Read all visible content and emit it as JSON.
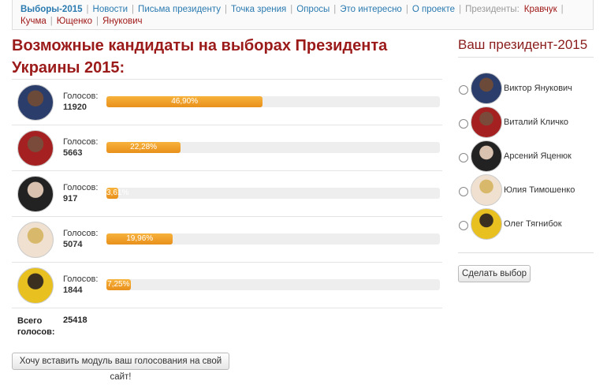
{
  "nav": {
    "items": [
      "Выборы-2015",
      "Новости",
      "Письма президенту",
      "Точка зрения",
      "Опросы",
      "Это интересно",
      "О проекте"
    ],
    "presidents_label": "Президенты:",
    "presidents": [
      "Кравчук",
      "Кучма",
      "Ющенко",
      "Янукович"
    ]
  },
  "results": {
    "title": "Возможные кандидаты на выборах Президента Украины 2015:",
    "votes_label": "Голосов:",
    "candidates": [
      {
        "votes": 11920,
        "percent": 46.9,
        "percent_label": "46,90%"
      },
      {
        "votes": 5663,
        "percent": 22.28,
        "percent_label": "22,28%"
      },
      {
        "votes": 917,
        "percent": 3.61,
        "percent_label": "3,61%"
      },
      {
        "votes": 5074,
        "percent": 19.96,
        "percent_label": "19,96%"
      },
      {
        "votes": 1844,
        "percent": 7.25,
        "percent_label": "7,25%"
      }
    ],
    "total_label": "Всего голосов:",
    "total": 25418,
    "embed_button": "Хочу вставить модуль ваш голосования на свой сайт!"
  },
  "poll": {
    "title": "Ваш президент-2015",
    "options": [
      "Виктор Янукович",
      "Виталий Кличко",
      "Арсений Яценюк",
      "Юлия Тимошенко",
      "Олег Тягнибок"
    ],
    "submit": "Сделать выбор"
  }
}
